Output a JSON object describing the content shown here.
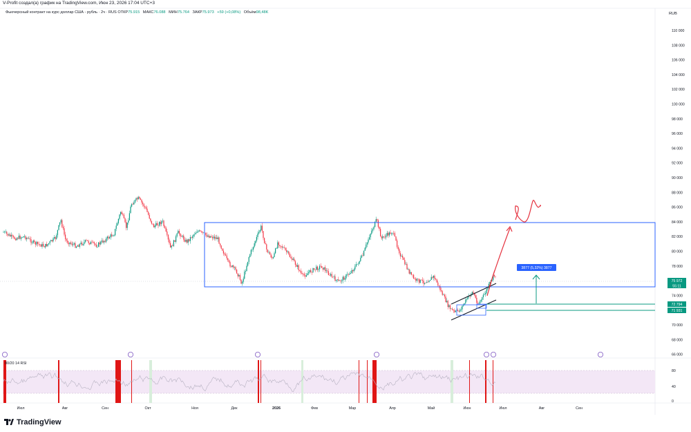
{
  "header": {
    "title": "V-Profit создал(а) график на TradingView.com, Июн 23, 2026 17:04 UTC+3"
  },
  "legend": {
    "symbol": "Фьючерсный контракт на курс доллар США - рубль · 2ч · RUS",
    "open_label": "ОТКР",
    "open_value": "75.915",
    "high_label": "МАКС",
    "high_value": "76.088",
    "low_label": "МИН",
    "low_value": "75.764",
    "close_label": "ЗАКР",
    "close_value": "75.973",
    "change": "+59 (+0,08%)",
    "volume_label": "Объём",
    "volume_value": "98,48K"
  },
  "currency": "RUB",
  "price_axis": [
    "110 000",
    "108 000",
    "106 000",
    "104 000",
    "102 000",
    "100 000",
    "98 000",
    "96 000",
    "94 000",
    "92 000",
    "90 000",
    "88 000",
    "86 000",
    "84 000",
    "82 000",
    "80 000",
    "78 000",
    "76 000",
    "74 000",
    "72 000",
    "70 000",
    "68 000",
    "66 000"
  ],
  "price_tags": {
    "last_price": "75 972",
    "countdown": "55:11",
    "level_1": "72 794",
    "level_2": "71 931"
  },
  "measure_label": "3877 (5,32%) 3877",
  "time_axis": [
    "Июл",
    "Авг",
    "Сен",
    "Окт",
    "Ноя",
    "Дек",
    "2026",
    "Фев",
    "Мар",
    "Апр",
    "Май",
    "Июн",
    "Июл",
    "Авг",
    "Сен"
  ],
  "rsi": {
    "title": "80/20 14 RSI",
    "levels": [
      "80",
      "40",
      "0"
    ]
  },
  "footer": {
    "brand": "TradingView"
  },
  "colors": {
    "up": "#089981",
    "down": "#f23645",
    "box": "#2962ff",
    "forecast": "#e5323f",
    "level": "#089981",
    "rsi_band": "#f3e7f6",
    "rsi_line": "#b7b2c2",
    "rsi_marker": "#e01515"
  }
}
